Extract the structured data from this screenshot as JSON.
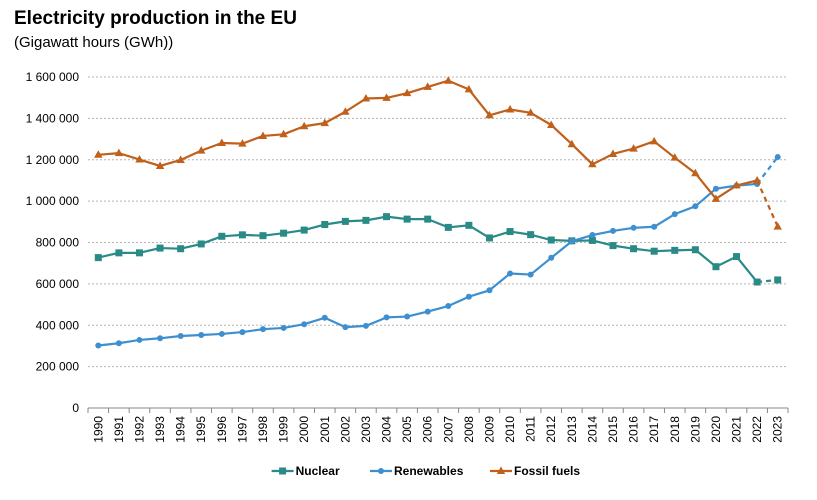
{
  "chart_data": {
    "type": "line",
    "title": "Electricity production in the EU",
    "subtitle": "(Gigawatt hours (GWh))",
    "xlabel": "",
    "ylabel": "",
    "ylim": [
      0,
      1600000
    ],
    "y_ticks": [
      0,
      200000,
      400000,
      600000,
      800000,
      1000000,
      1200000,
      1400000,
      1600000
    ],
    "y_tick_labels": [
      "0",
      "200 000",
      "400 000",
      "600 000",
      "800 000",
      "1 000 000",
      "1 200 000",
      "1 400 000",
      "1 600 000"
    ],
    "grid": "horizontal dotted",
    "legend_position": "bottom",
    "categories": [
      "1990",
      "1991",
      "1992",
      "1993",
      "1994",
      "1995",
      "1996",
      "1997",
      "1998",
      "1999",
      "2000",
      "2001",
      "2002",
      "2003",
      "2004",
      "2005",
      "2006",
      "2007",
      "2008",
      "2009",
      "2010",
      "2011",
      "2012",
      "2013",
      "2014",
      "2015",
      "2016",
      "2017",
      "2018",
      "2019",
      "2020",
      "2021",
      "2022",
      "2023"
    ],
    "dashed_last_segment": true,
    "series": [
      {
        "name": "Nuclear",
        "color": "#2a8a86",
        "marker": "square",
        "values": [
          727000,
          750000,
          750000,
          773000,
          770000,
          793000,
          830000,
          837000,
          833000,
          845000,
          860000,
          887000,
          902000,
          907000,
          925000,
          913000,
          913000,
          873000,
          883000,
          822000,
          853000,
          838000,
          812000,
          808000,
          810000,
          785000,
          770000,
          758000,
          762000,
          765000,
          683000,
          732000,
          609000,
          619000
        ]
      },
      {
        "name": "Renewables",
        "color": "#3d8fcf",
        "marker": "circle",
        "values": [
          302000,
          313000,
          329000,
          337000,
          348000,
          353000,
          358000,
          367000,
          381000,
          387000,
          405000,
          436000,
          391000,
          397000,
          438000,
          442000,
          466000,
          493000,
          538000,
          569000,
          650000,
          645000,
          726000,
          806000,
          836000,
          856000,
          871000,
          876000,
          937000,
          975000,
          1060000,
          1075000,
          1083000,
          1213000
        ]
      },
      {
        "name": "Fossil fuels",
        "color": "#c0601a",
        "marker": "triangle",
        "values": [
          1224000,
          1232000,
          1201000,
          1170000,
          1199000,
          1244000,
          1281000,
          1278000,
          1315000,
          1323000,
          1362000,
          1377000,
          1432000,
          1496000,
          1499000,
          1522000,
          1552000,
          1582000,
          1540000,
          1415000,
          1443000,
          1427000,
          1368000,
          1275000,
          1178000,
          1228000,
          1254000,
          1289000,
          1210000,
          1135000,
          1011000,
          1076000,
          1100000,
          877000
        ]
      }
    ]
  }
}
